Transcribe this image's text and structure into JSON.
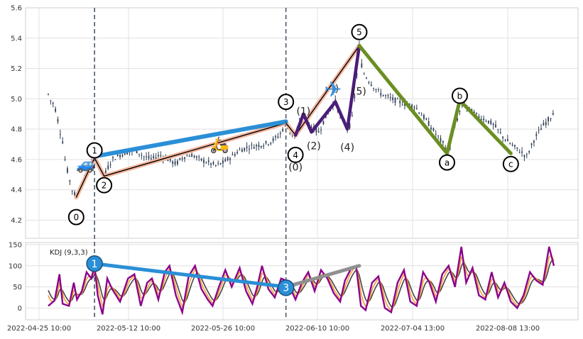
{
  "chart_data": [
    {
      "type": "candlestick",
      "title": "",
      "ylim": [
        4.08,
        5.6
      ],
      "yticks": [
        "4.2",
        "4.4",
        "4.6",
        "4.8",
        "5.0",
        "5.2",
        "5.4",
        "5.6"
      ],
      "grid": true,
      "price_trace": [
        [
          0,
          5.03
        ],
        [
          3,
          4.99
        ],
        [
          6,
          4.97
        ],
        [
          9,
          4.93
        ],
        [
          12,
          4.86
        ],
        [
          15,
          4.78
        ],
        [
          18,
          4.72
        ],
        [
          21,
          4.6
        ],
        [
          25,
          4.5
        ],
        [
          30,
          4.4
        ],
        [
          35,
          4.35
        ],
        [
          40,
          4.42
        ],
        [
          45,
          4.47
        ],
        [
          50,
          4.52
        ],
        [
          55,
          4.58
        ],
        [
          58,
          4.61
        ],
        [
          62,
          4.58
        ],
        [
          66,
          4.52
        ],
        [
          70,
          4.49
        ],
        [
          75,
          4.55
        ],
        [
          80,
          4.6
        ],
        [
          90,
          4.63
        ],
        [
          100,
          4.65
        ],
        [
          110,
          4.66
        ],
        [
          120,
          4.62
        ],
        [
          130,
          4.6
        ],
        [
          140,
          4.63
        ],
        [
          150,
          4.6
        ],
        [
          160,
          4.57
        ],
        [
          170,
          4.62
        ],
        [
          180,
          4.63
        ],
        [
          190,
          4.6
        ],
        [
          200,
          4.58
        ],
        [
          210,
          4.56
        ],
        [
          220,
          4.58
        ],
        [
          230,
          4.62
        ],
        [
          240,
          4.66
        ],
        [
          250,
          4.68
        ],
        [
          260,
          4.69
        ],
        [
          270,
          4.7
        ],
        [
          280,
          4.72
        ],
        [
          290,
          4.76
        ],
        [
          298,
          4.84
        ],
        [
          304,
          4.77
        ],
        [
          310,
          4.76
        ],
        [
          315,
          4.83
        ],
        [
          320,
          4.88
        ],
        [
          325,
          4.85
        ],
        [
          330,
          4.82
        ],
        [
          335,
          4.79
        ],
        [
          340,
          4.78
        ],
        [
          345,
          4.85
        ],
        [
          350,
          4.9
        ],
        [
          355,
          4.95
        ],
        [
          360,
          4.98
        ],
        [
          365,
          4.9
        ],
        [
          370,
          4.85
        ],
        [
          375,
          4.81
        ],
        [
          380,
          4.83
        ],
        [
          386,
          5.1
        ],
        [
          390,
          5.35
        ],
        [
          394,
          5.18
        ],
        [
          398,
          5.15
        ],
        [
          405,
          5.1
        ],
        [
          415,
          5.04
        ],
        [
          430,
          5.0
        ],
        [
          445,
          4.97
        ],
        [
          460,
          4.95
        ],
        [
          475,
          4.85
        ],
        [
          490,
          4.74
        ],
        [
          500,
          4.67
        ],
        [
          505,
          4.7
        ],
        [
          510,
          4.82
        ],
        [
          515,
          4.9
        ],
        [
          520,
          4.97
        ],
        [
          530,
          4.92
        ],
        [
          540,
          4.88
        ],
        [
          550,
          4.86
        ],
        [
          560,
          4.82
        ],
        [
          570,
          4.75
        ],
        [
          580,
          4.7
        ],
        [
          590,
          4.66
        ],
        [
          600,
          4.62
        ],
        [
          605,
          4.68
        ],
        [
          610,
          4.74
        ],
        [
          615,
          4.78
        ],
        [
          620,
          4.82
        ],
        [
          625,
          4.85
        ],
        [
          630,
          4.88
        ],
        [
          634,
          4.92
        ]
      ],
      "waves": [
        {
          "name": "impulse-a",
          "color": "#f4b7a0",
          "points": [
            [
              35,
              4.35
            ],
            [
              58,
              4.61
            ],
            [
              70,
              4.49
            ],
            [
              298,
              4.84
            ]
          ]
        },
        {
          "name": "impulse-b",
          "color": "#f4b7a0",
          "points": [
            [
              298,
              4.84
            ],
            [
              310,
              4.76
            ],
            [
              390,
              5.35
            ]
          ]
        },
        {
          "name": "sub-wave",
          "color": "#4b1d7a",
          "points": [
            [
              310,
              4.76
            ],
            [
              320,
              4.9
            ],
            [
              330,
              4.78
            ],
            [
              360,
              4.98
            ],
            [
              375,
              4.8
            ],
            [
              390,
              5.35
            ]
          ]
        },
        {
          "name": "trendline-1-3",
          "color": "#2a8fd6",
          "points": [
            [
              58,
              4.62
            ],
            [
              298,
              4.85
            ]
          ]
        },
        {
          "name": "correction",
          "color": "#6b8e23",
          "points": [
            [
              390,
              5.35
            ],
            [
              500,
              4.64
            ],
            [
              516,
              4.99
            ],
            [
              580,
              4.64
            ]
          ]
        }
      ],
      "labels": [
        {
          "text": "0",
          "x": 35,
          "y": 4.22,
          "circle": true
        },
        {
          "text": "1",
          "x": 58,
          "y": 4.66,
          "circle": true
        },
        {
          "text": "2",
          "x": 70,
          "y": 4.43,
          "circle": true
        },
        {
          "text": "3",
          "x": 298,
          "y": 4.98,
          "circle": true
        },
        {
          "text": "4",
          "x": 310,
          "y": 4.63,
          "circle": true
        },
        {
          "text": "5",
          "x": 390,
          "y": 5.44,
          "circle": true
        },
        {
          "text": "a",
          "x": 500,
          "y": 4.58,
          "circle": true
        },
        {
          "text": "b",
          "x": 516,
          "y": 5.02,
          "circle": true
        },
        {
          "text": "c",
          "x": 580,
          "y": 4.57,
          "circle": true
        },
        {
          "text": "(0)",
          "x": 310,
          "y": 4.55,
          "circle": false
        },
        {
          "text": "(1)",
          "x": 320,
          "y": 4.92,
          "circle": false
        },
        {
          "text": "(2)",
          "x": 333,
          "y": 4.69,
          "circle": false
        },
        {
          "text": "(4)",
          "x": 375,
          "y": 4.68,
          "circle": false
        },
        {
          "text": "(5)",
          "x": 390,
          "y": 5.05,
          "circle": false
        },
        {
          "text": ")",
          "x": 362,
          "y": 5.07,
          "circle": false
        }
      ],
      "emoji": [
        {
          "name": "car-icon",
          "glyph": "🚙",
          "x": 47,
          "y": 4.57
        },
        {
          "name": "scooter-icon",
          "glyph": "🛵",
          "x": 215,
          "y": 4.7
        },
        {
          "name": "airplane-icon",
          "glyph": "✈",
          "x": 357,
          "y": 5.05
        }
      ],
      "vlines": [
        58,
        298
      ]
    },
    {
      "type": "line",
      "title": "KDJ (9,3,3)",
      "ylim": [
        -28,
        155
      ],
      "yticks": [
        "0",
        "50",
        "100",
        "150"
      ],
      "xticks": [
        "2022-04-25 10:00",
        "2022-05-12 10:00",
        "2022-05-26 10:00",
        "2022-06-10 10:00",
        "2022-07-04 13:00",
        "2022-08-08 13:00"
      ],
      "grid": true,
      "series": [
        {
          "color": "#8b008b"
        },
        {
          "color": "#f0a030"
        },
        {
          "color": "#444444"
        }
      ],
      "j_trace": [
        [
          0,
          5
        ],
        [
          8,
          18
        ],
        [
          14,
          80
        ],
        [
          18,
          10
        ],
        [
          26,
          5
        ],
        [
          32,
          60
        ],
        [
          36,
          20
        ],
        [
          42,
          40
        ],
        [
          48,
          85
        ],
        [
          54,
          70
        ],
        [
          58,
          100
        ],
        [
          62,
          30
        ],
        [
          68,
          -15
        ],
        [
          74,
          70
        ],
        [
          80,
          45
        ],
        [
          90,
          15
        ],
        [
          100,
          70
        ],
        [
          108,
          80
        ],
        [
          116,
          5
        ],
        [
          124,
          60
        ],
        [
          130,
          70
        ],
        [
          138,
          20
        ],
        [
          146,
          85
        ],
        [
          152,
          100
        ],
        [
          160,
          30
        ],
        [
          168,
          -10
        ],
        [
          176,
          75
        ],
        [
          184,
          100
        ],
        [
          192,
          45
        ],
        [
          200,
          20
        ],
        [
          206,
          5
        ],
        [
          214,
          50
        ],
        [
          222,
          90
        ],
        [
          230,
          50
        ],
        [
          240,
          95
        ],
        [
          248,
          40
        ],
        [
          256,
          10
        ],
        [
          262,
          50
        ],
        [
          268,
          100
        ],
        [
          276,
          45
        ],
        [
          284,
          25
        ],
        [
          292,
          70
        ],
        [
          298,
          65
        ],
        [
          304,
          45
        ],
        [
          310,
          20
        ],
        [
          318,
          60
        ],
        [
          326,
          85
        ],
        [
          334,
          40
        ],
        [
          342,
          90
        ],
        [
          350,
          70
        ],
        [
          358,
          35
        ],
        [
          366,
          15
        ],
        [
          372,
          65
        ],
        [
          380,
          95
        ],
        [
          386,
          100
        ],
        [
          392,
          5
        ],
        [
          398,
          -5
        ],
        [
          406,
          60
        ],
        [
          414,
          75
        ],
        [
          422,
          0
        ],
        [
          430,
          -10
        ],
        [
          438,
          60
        ],
        [
          446,
          90
        ],
        [
          454,
          15
        ],
        [
          462,
          5
        ],
        [
          470,
          85
        ],
        [
          478,
          60
        ],
        [
          486,
          15
        ],
        [
          494,
          80
        ],
        [
          502,
          100
        ],
        [
          510,
          50
        ],
        [
          518,
          145
        ],
        [
          524,
          60
        ],
        [
          532,
          95
        ],
        [
          540,
          30
        ],
        [
          548,
          20
        ],
        [
          556,
          85
        ],
        [
          564,
          25
        ],
        [
          572,
          60
        ],
        [
          580,
          15
        ],
        [
          588,
          0
        ],
        [
          596,
          30
        ],
        [
          604,
          85
        ],
        [
          612,
          65
        ],
        [
          620,
          55
        ],
        [
          628,
          145
        ],
        [
          634,
          100
        ]
      ],
      "kdj_trendlines": [
        {
          "name": "k-trend",
          "color": "#2a8fd6",
          "points": [
            [
              58,
              105
            ],
            [
              298,
              50
            ]
          ]
        },
        {
          "name": "k-trend-grey",
          "color": "#909090",
          "points": [
            [
              298,
              50
            ],
            [
              390,
              100
            ]
          ]
        }
      ],
      "labels": [
        {
          "text": "1",
          "x": 58,
          "y": 105
        },
        {
          "text": "3",
          "x": 298,
          "y": 48
        }
      ],
      "vlines": [
        58,
        298
      ]
    }
  ]
}
